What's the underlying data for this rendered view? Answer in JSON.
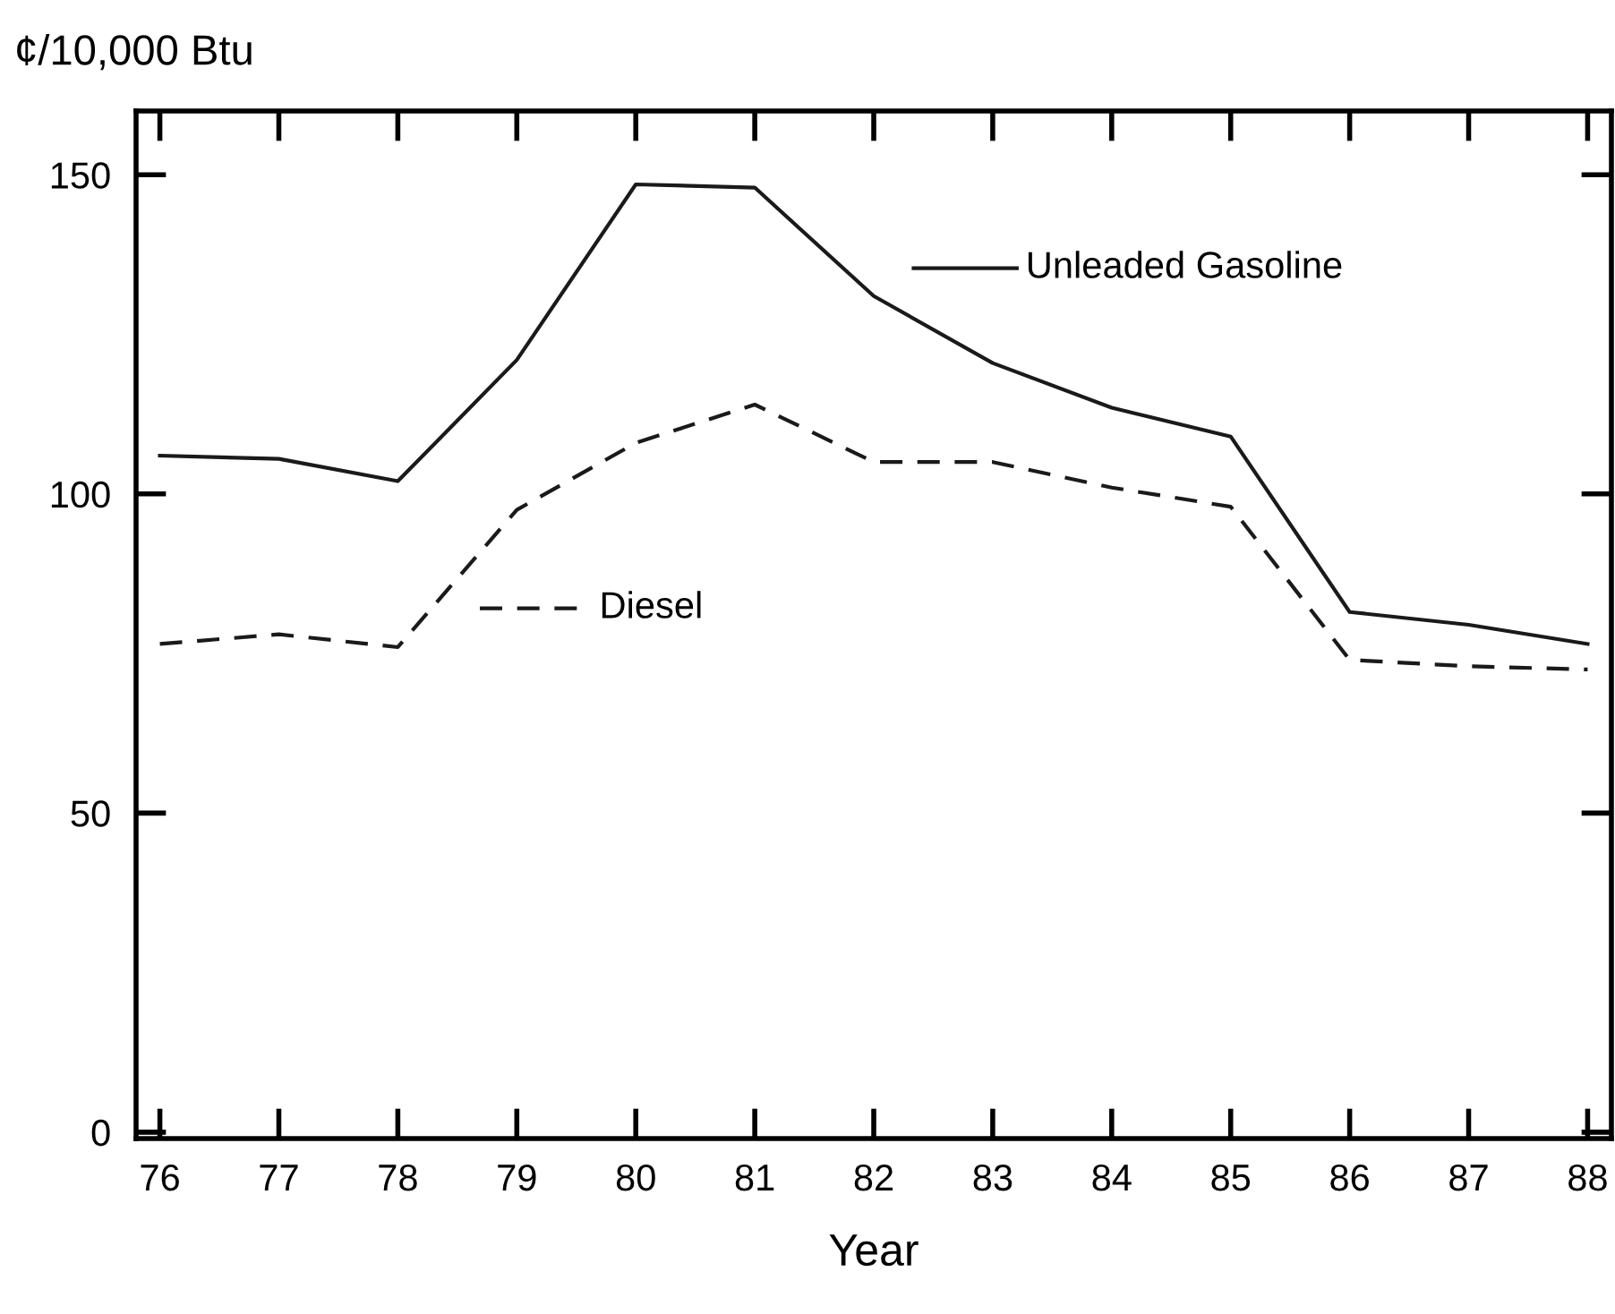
{
  "chart_data": {
    "type": "line",
    "ylabel": "¢/10,000 Btu",
    "xlabel": "Year",
    "x": [
      76,
      77,
      78,
      79,
      80,
      81,
      82,
      83,
      84,
      85,
      86,
      87,
      88
    ],
    "series": [
      {
        "name": "Unleaded Gasoline",
        "color": "#1a1a1a",
        "line_style": "solid",
        "values": [
          106,
          105.5,
          102,
          121,
          148.5,
          148,
          131,
          120.5,
          113.5,
          109,
          81.5,
          79.5,
          76.5
        ]
      },
      {
        "name": "Diesel",
        "color": "#1a1a1a",
        "line_style": "dashed",
        "values": [
          76.5,
          78,
          76,
          97.5,
          108,
          114,
          105,
          105,
          101,
          98,
          74,
          73,
          72.5
        ]
      }
    ],
    "xlim": [
      75.8,
      88.2
    ],
    "ylim": [
      -1,
      160
    ],
    "xticks": [
      76,
      77,
      78,
      79,
      80,
      81,
      82,
      83,
      84,
      85,
      86,
      87,
      88
    ],
    "yticks": [
      0,
      50,
      100,
      150
    ],
    "grid": false,
    "legend": "top",
    "marker": "none"
  }
}
